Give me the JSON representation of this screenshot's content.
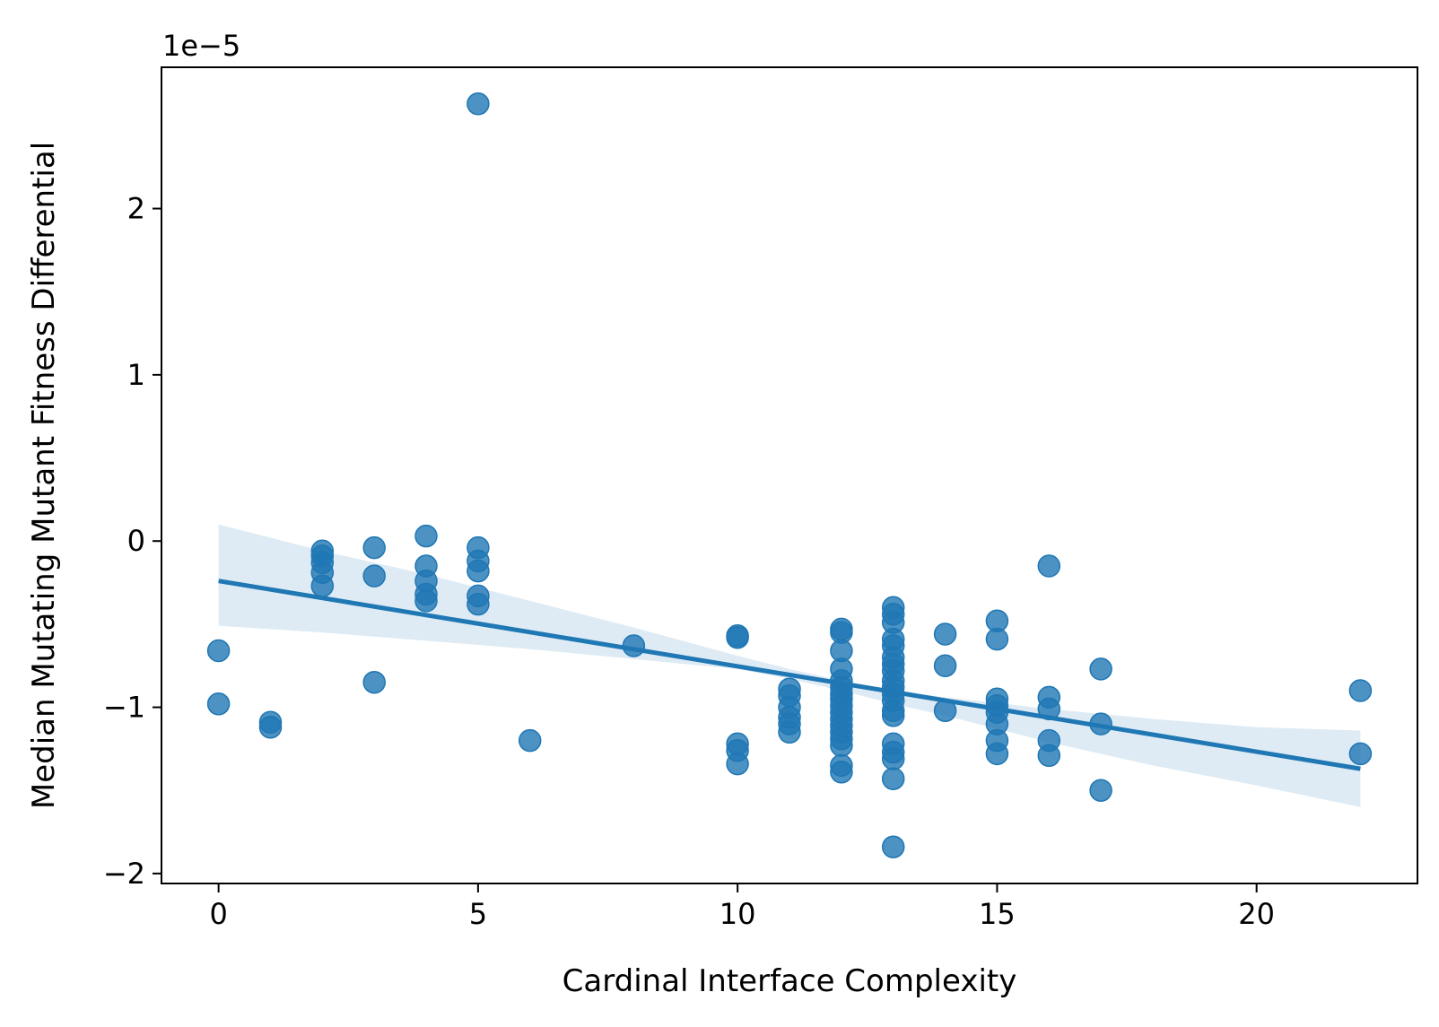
{
  "chart_data": {
    "type": "scatter",
    "xlabel": "Cardinal Interface Complexity",
    "ylabel": "Median Mutating Mutant Fitness Differential",
    "y_offset_text": "1e−5",
    "y_multiplier": 1e-05,
    "xlim": [
      -1.1,
      23.1
    ],
    "ylim": [
      -2.06,
      2.85
    ],
    "x_ticks": [
      0,
      5,
      10,
      15,
      20
    ],
    "x_tick_labels": [
      "0",
      "5",
      "10",
      "15",
      "20"
    ],
    "y_ticks": [
      -2,
      -1,
      0,
      1,
      2
    ],
    "y_tick_labels": [
      "−2",
      "−1",
      "0",
      "1",
      "2"
    ],
    "grid": false,
    "legend": "none",
    "colors": {
      "points": "#1f77b4",
      "line": "#1f77b4",
      "band": "#1f77b4"
    },
    "points": [
      {
        "x": 0,
        "y": -0.66
      },
      {
        "x": 0,
        "y": -0.98
      },
      {
        "x": 1,
        "y": -1.09
      },
      {
        "x": 1,
        "y": -1.12
      },
      {
        "x": 2,
        "y": -0.06
      },
      {
        "x": 2,
        "y": -0.09
      },
      {
        "x": 2,
        "y": -0.13
      },
      {
        "x": 2,
        "y": -0.19
      },
      {
        "x": 2,
        "y": -0.27
      },
      {
        "x": 3,
        "y": -0.04
      },
      {
        "x": 3,
        "y": -0.21
      },
      {
        "x": 3,
        "y": -0.85
      },
      {
        "x": 4,
        "y": 0.03
      },
      {
        "x": 4,
        "y": -0.15
      },
      {
        "x": 4,
        "y": -0.24
      },
      {
        "x": 4,
        "y": -0.32
      },
      {
        "x": 4,
        "y": -0.36
      },
      {
        "x": 5,
        "y": 2.63
      },
      {
        "x": 5,
        "y": -0.04
      },
      {
        "x": 5,
        "y": -0.12
      },
      {
        "x": 5,
        "y": -0.18
      },
      {
        "x": 5,
        "y": -0.33
      },
      {
        "x": 5,
        "y": -0.38
      },
      {
        "x": 6,
        "y": -1.2
      },
      {
        "x": 8,
        "y": -0.63
      },
      {
        "x": 10,
        "y": -0.57
      },
      {
        "x": 10,
        "y": -0.58
      },
      {
        "x": 10,
        "y": -1.22
      },
      {
        "x": 10,
        "y": -1.26
      },
      {
        "x": 10,
        "y": -1.34
      },
      {
        "x": 11,
        "y": -0.89
      },
      {
        "x": 11,
        "y": -0.93
      },
      {
        "x": 11,
        "y": -1.0
      },
      {
        "x": 11,
        "y": -1.06
      },
      {
        "x": 11,
        "y": -1.1
      },
      {
        "x": 11,
        "y": -1.15
      },
      {
        "x": 12,
        "y": -0.53
      },
      {
        "x": 12,
        "y": -0.55
      },
      {
        "x": 12,
        "y": -0.66
      },
      {
        "x": 12,
        "y": -0.77
      },
      {
        "x": 12,
        "y": -0.84
      },
      {
        "x": 12,
        "y": -0.88
      },
      {
        "x": 12,
        "y": -0.92
      },
      {
        "x": 12,
        "y": -0.95
      },
      {
        "x": 12,
        "y": -0.99
      },
      {
        "x": 12,
        "y": -1.03
      },
      {
        "x": 12,
        "y": -1.07
      },
      {
        "x": 12,
        "y": -1.11
      },
      {
        "x": 12,
        "y": -1.15
      },
      {
        "x": 12,
        "y": -1.19
      },
      {
        "x": 12,
        "y": -1.23
      },
      {
        "x": 12,
        "y": -1.35
      },
      {
        "x": 12,
        "y": -1.39
      },
      {
        "x": 13,
        "y": -0.4
      },
      {
        "x": 13,
        "y": -0.44
      },
      {
        "x": 13,
        "y": -0.49
      },
      {
        "x": 13,
        "y": -0.59
      },
      {
        "x": 13,
        "y": -0.63
      },
      {
        "x": 13,
        "y": -0.7
      },
      {
        "x": 13,
        "y": -0.74
      },
      {
        "x": 13,
        "y": -0.78
      },
      {
        "x": 13,
        "y": -0.84
      },
      {
        "x": 13,
        "y": -0.88
      },
      {
        "x": 13,
        "y": -0.92
      },
      {
        "x": 13,
        "y": -0.96
      },
      {
        "x": 13,
        "y": -1.02
      },
      {
        "x": 13,
        "y": -1.05
      },
      {
        "x": 13,
        "y": -1.22
      },
      {
        "x": 13,
        "y": -1.27
      },
      {
        "x": 13,
        "y": -1.31
      },
      {
        "x": 13,
        "y": -1.43
      },
      {
        "x": 13,
        "y": -1.84
      },
      {
        "x": 14,
        "y": -0.56
      },
      {
        "x": 14,
        "y": -0.75
      },
      {
        "x": 14,
        "y": -1.02
      },
      {
        "x": 15,
        "y": -0.48
      },
      {
        "x": 15,
        "y": -0.59
      },
      {
        "x": 15,
        "y": -0.95
      },
      {
        "x": 15,
        "y": -0.99
      },
      {
        "x": 15,
        "y": -1.03
      },
      {
        "x": 15,
        "y": -1.1
      },
      {
        "x": 15,
        "y": -1.2
      },
      {
        "x": 15,
        "y": -1.28
      },
      {
        "x": 16,
        "y": -0.15
      },
      {
        "x": 16,
        "y": -0.94
      },
      {
        "x": 16,
        "y": -1.01
      },
      {
        "x": 16,
        "y": -1.2
      },
      {
        "x": 16,
        "y": -1.29
      },
      {
        "x": 17,
        "y": -0.77
      },
      {
        "x": 17,
        "y": -1.1
      },
      {
        "x": 17,
        "y": -1.5
      },
      {
        "x": 22,
        "y": -0.9
      },
      {
        "x": 22,
        "y": -1.28
      }
    ],
    "regression": {
      "x": [
        0,
        22
      ],
      "y": [
        -0.24,
        -1.37
      ],
      "ci_x": [
        0,
        2,
        4,
        6,
        8,
        10,
        11,
        12,
        13,
        14,
        16,
        18,
        20,
        22
      ],
      "ci_upper": [
        0.1,
        -0.06,
        -0.2,
        -0.36,
        -0.52,
        -0.69,
        -0.77,
        -0.84,
        -0.9,
        -0.94,
        -1.01,
        -1.07,
        -1.12,
        -1.14
      ],
      "ci_lower": [
        -0.51,
        -0.55,
        -0.6,
        -0.65,
        -0.71,
        -0.77,
        -0.83,
        -0.9,
        -0.98,
        -1.05,
        -1.21,
        -1.35,
        -1.47,
        -1.6
      ]
    }
  }
}
